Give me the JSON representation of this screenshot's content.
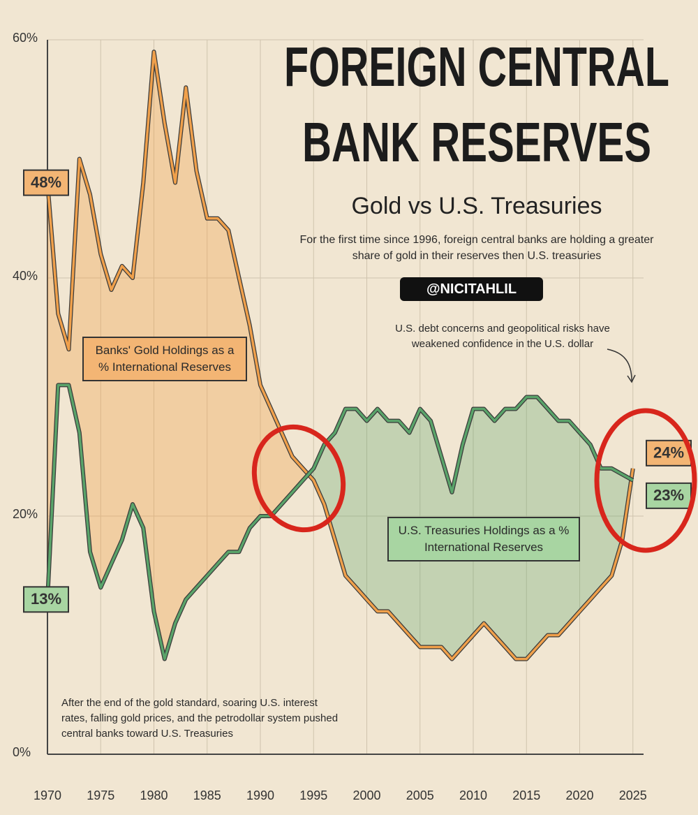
{
  "chart_data": {
    "type": "line",
    "title": [
      "FOREIGN CENTRAL",
      "BANK RESERVES"
    ],
    "subtitle": "Gold vs U.S. Treasuries",
    "description": "For the first time since 1996, foreign central banks are holding a greater share of gold in their reserves then U.S. treasuries",
    "handle": "@NICITAHLIL",
    "annotations": [
      "U.S. debt concerns and geopolitical risks have weakened confidence in the U.S. dollar",
      "After the end of the gold standard, soaring U.S. interest rates, falling gold prices, and the petrodollar system pushed central banks toward U.S. Treasuries"
    ],
    "x": [
      1970,
      1971,
      1972,
      1973,
      1974,
      1975,
      1976,
      1977,
      1978,
      1979,
      1980,
      1981,
      1982,
      1983,
      1984,
      1985,
      1986,
      1987,
      1988,
      1989,
      1990,
      1991,
      1992,
      1993,
      1994,
      1995,
      1996,
      1997,
      1998,
      1999,
      2000,
      2001,
      2002,
      2003,
      2004,
      2005,
      2006,
      2007,
      2008,
      2009,
      2010,
      2011,
      2012,
      2013,
      2014,
      2015,
      2016,
      2017,
      2018,
      2019,
      2020,
      2021,
      2022,
      2023,
      2024,
      2025
    ],
    "series": [
      {
        "name": "Banks' Gold Holdings as a % International Reserves",
        "color": "#f0a04b",
        "values": [
          48,
          37,
          34,
          50,
          47,
          42,
          39,
          41,
          40,
          48,
          59,
          53,
          48,
          56,
          49,
          45,
          45,
          44,
          40,
          36,
          31,
          29,
          27,
          25,
          24,
          23,
          21,
          18,
          15,
          14,
          13,
          12,
          12,
          11,
          10,
          9,
          9,
          9,
          8,
          9,
          10,
          11,
          10,
          9,
          8,
          8,
          9,
          10,
          10,
          11,
          12,
          13,
          14,
          15,
          18,
          24
        ],
        "value_labels": [
          "48%",
          null,
          null,
          null,
          null,
          null,
          null,
          null,
          null,
          null,
          null,
          null,
          null,
          null,
          null,
          null,
          null,
          null,
          null,
          null,
          null,
          null,
          null,
          null,
          null,
          null,
          null,
          null,
          null,
          null,
          null,
          null,
          null,
          null,
          null,
          null,
          null,
          null,
          null,
          null,
          null,
          null,
          null,
          null,
          null,
          null,
          null,
          null,
          null,
          null,
          null,
          null,
          null,
          null,
          null,
          "24%"
        ]
      },
      {
        "name": "U.S. Treasuries Holdings as a % International Reserves",
        "color": "#5aa46a",
        "values": [
          13,
          31,
          31,
          27,
          17,
          14,
          16,
          18,
          21,
          19,
          12,
          8,
          11,
          13,
          14,
          15,
          16,
          17,
          17,
          19,
          20,
          20,
          21,
          22,
          23,
          24,
          26,
          27,
          29,
          29,
          28,
          29,
          28,
          28,
          27,
          29,
          28,
          25,
          22,
          26,
          29,
          29,
          28,
          29,
          29,
          30,
          30,
          29,
          28,
          28,
          27,
          26,
          24,
          24,
          23.5,
          23
        ],
        "value_labels": [
          "13%",
          null,
          null,
          null,
          null,
          null,
          null,
          null,
          null,
          null,
          null,
          null,
          null,
          null,
          null,
          null,
          null,
          null,
          null,
          null,
          null,
          null,
          null,
          null,
          null,
          null,
          null,
          null,
          null,
          null,
          null,
          null,
          null,
          null,
          null,
          null,
          null,
          null,
          null,
          null,
          null,
          null,
          null,
          null,
          null,
          null,
          null,
          null,
          null,
          null,
          null,
          null,
          null,
          null,
          null,
          "23%"
        ]
      }
    ],
    "xlim": [
      1970,
      2026
    ],
    "xticks": [
      1970,
      1975,
      1980,
      1985,
      1990,
      1995,
      2000,
      2005,
      2010,
      2015,
      2020,
      2025
    ],
    "ylim": [
      0,
      60
    ],
    "yticks": [
      {
        "value": 0,
        "label": "0%"
      },
      {
        "value": 20,
        "label": "20%"
      },
      {
        "value": 40,
        "label": "40%"
      },
      {
        "value": 60,
        "label": "60%"
      }
    ],
    "grid": true
  }
}
